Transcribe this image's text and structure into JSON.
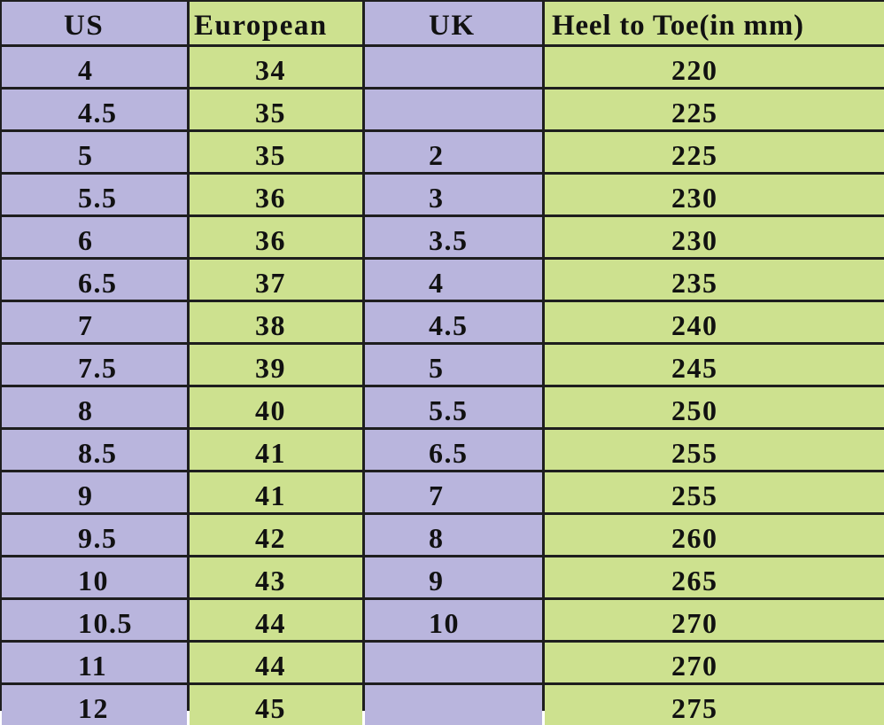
{
  "table": {
    "header": [
      "US",
      "European",
      "UK",
      "Heel to Toe(in mm)"
    ],
    "rows": [
      [
        "4",
        "34",
        null,
        "220"
      ],
      [
        "4.5",
        "35",
        null,
        "225"
      ],
      [
        "5",
        "35",
        "2",
        "225"
      ],
      [
        "5.5",
        "36",
        "3",
        "230"
      ],
      [
        "6",
        "36",
        "3.5",
        "230"
      ],
      [
        "6.5",
        "37",
        "4",
        "235"
      ],
      [
        "7",
        "38",
        "4.5",
        "240"
      ],
      [
        "7.5",
        "39",
        "5",
        "245"
      ],
      [
        "8",
        "40",
        "5.5",
        "250"
      ],
      [
        "8.5",
        "41",
        "6.5",
        "255"
      ],
      [
        "9",
        "41",
        "7",
        "255"
      ],
      [
        "9.5",
        "42",
        "8",
        "260"
      ],
      [
        "10",
        "43",
        "9",
        "265"
      ],
      [
        "10.5",
        "44",
        "10",
        "270"
      ],
      [
        "11",
        "44",
        null,
        "270"
      ],
      [
        "12",
        "45",
        null,
        "275"
      ]
    ]
  }
}
